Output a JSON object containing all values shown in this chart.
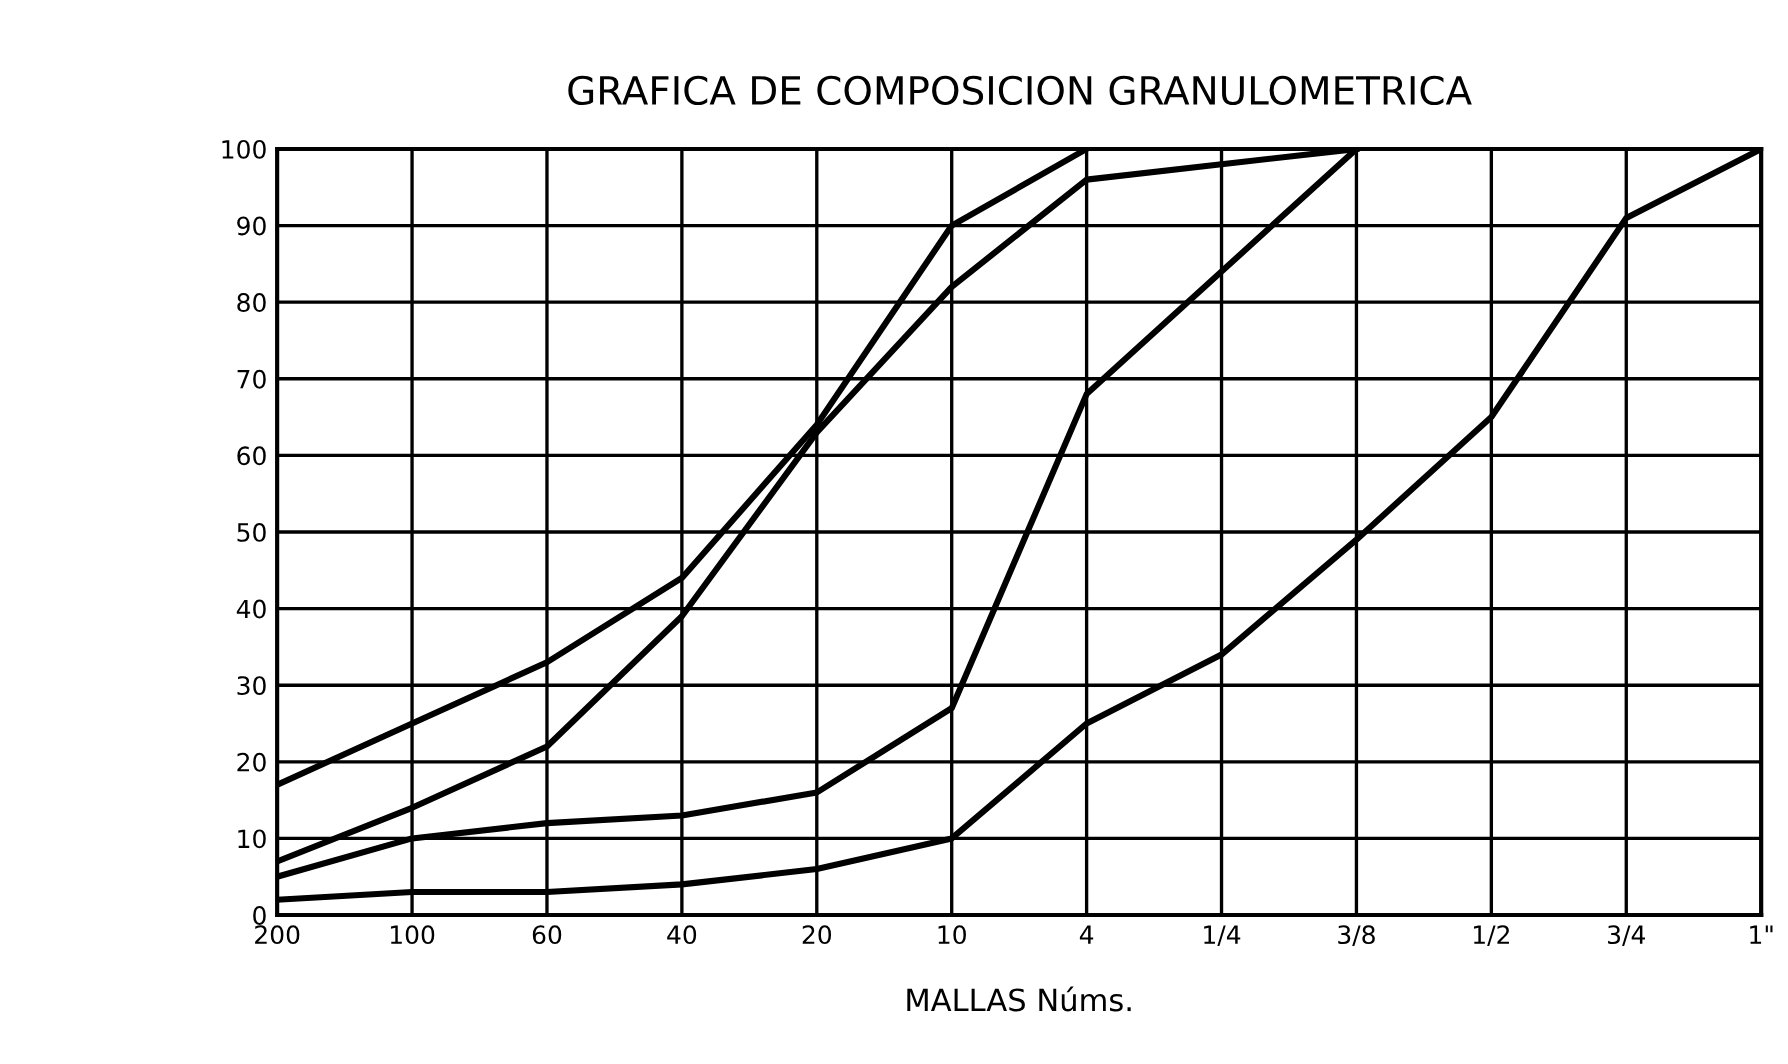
{
  "chart_data": {
    "type": "line",
    "title": "GRAFICA DE COMPOSICION GRANULOMETRICA",
    "xlabel": "MALLAS Núms.",
    "grid": true,
    "marker": "none",
    "line_style": "solid",
    "categories": [
      "200",
      "100",
      "60",
      "40",
      "20",
      "10",
      "4",
      "1/4",
      "3/8",
      "1/2",
      "3/4",
      "1\""
    ],
    "ylim": [
      0,
      100
    ],
    "yticks": [
      0,
      10,
      20,
      30,
      40,
      50,
      60,
      70,
      80,
      90,
      100
    ],
    "series": [
      {
        "color": "#000000",
        "values": [
          17,
          25,
          33,
          44,
          64,
          90,
          100,
          null,
          null,
          null,
          null,
          null
        ]
      },
      {
        "color": "#000000",
        "values": [
          7,
          14,
          22,
          39,
          63,
          82,
          96,
          98,
          100,
          null,
          null,
          null
        ]
      },
      {
        "color": "#000000",
        "values": [
          5,
          10,
          12,
          13,
          16,
          27,
          68,
          84,
          100,
          null,
          null,
          null
        ]
      },
      {
        "color": "#000000",
        "values": [
          2,
          3,
          3,
          4,
          6,
          10,
          25,
          34,
          49,
          65,
          91,
          100
        ]
      }
    ]
  }
}
